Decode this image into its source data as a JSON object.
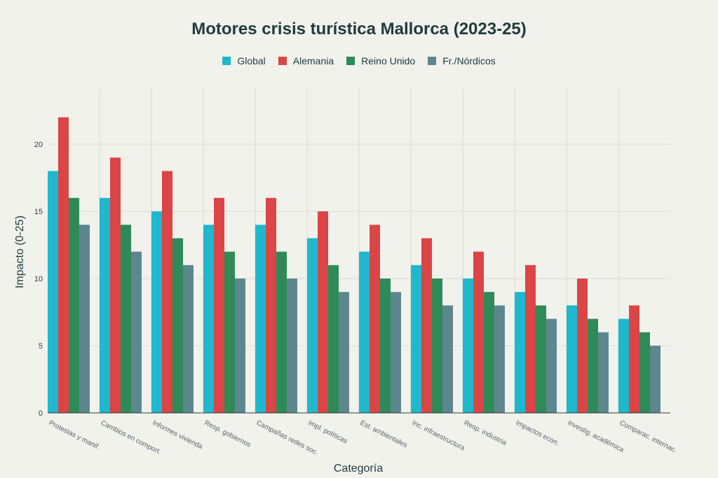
{
  "chart_data": {
    "type": "bar",
    "title": "Motores crisis turística Mallorca (2023-25)",
    "xlabel": "Categoría",
    "ylabel": "Impacto (0-25)",
    "ylim": [
      0,
      25
    ],
    "yticks": [
      0,
      5,
      10,
      15,
      20
    ],
    "grid": true,
    "legend_position": "top-center",
    "categories": [
      "Protestas y manif.",
      "Cambios en comport.",
      "Informes vivienda",
      "Resp. gobiernos",
      "Campañas redes soc.",
      "Impl. políticas",
      "Est. ambientales",
      "Inc. infraestructura",
      "Resp. industria",
      "Impactos econ.",
      "Investig. académica",
      "Comparac. internac."
    ],
    "series": [
      {
        "name": "Global",
        "color": "#1fb8cd",
        "values": [
          18,
          16,
          15,
          14,
          14,
          13,
          12,
          11,
          10,
          9,
          8,
          7
        ]
      },
      {
        "name": "Alemania",
        "color": "#db4545",
        "values": [
          22,
          19,
          18,
          16,
          16,
          15,
          14,
          13,
          12,
          11,
          10,
          8
        ]
      },
      {
        "name": "Reino Unido",
        "color": "#2e8b57",
        "values": [
          16,
          14,
          13,
          12,
          12,
          11,
          10,
          10,
          9,
          8,
          7,
          6
        ]
      },
      {
        "name": "Fr./Nórdicos",
        "color": "#5d878f",
        "values": [
          14,
          12,
          11,
          10,
          10,
          9,
          9,
          8,
          8,
          7,
          6,
          5
        ]
      }
    ]
  }
}
